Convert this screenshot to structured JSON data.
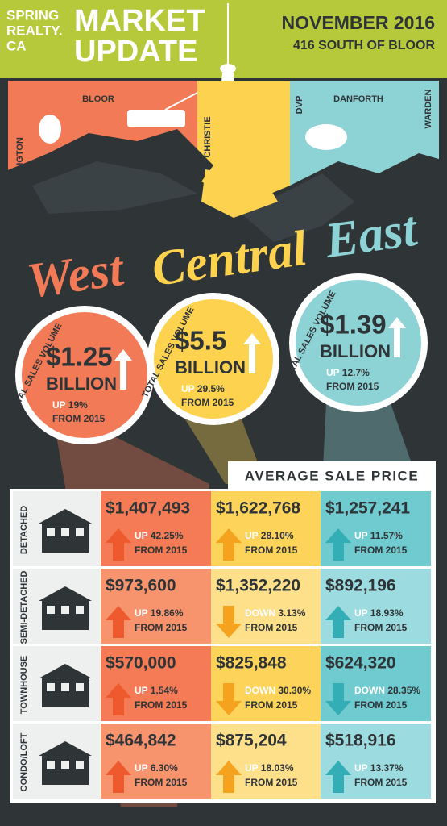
{
  "header": {
    "brand": [
      "SPRING",
      "REALTY.",
      "CA"
    ],
    "title": [
      "MARKET",
      "UPDATE"
    ],
    "date": "NOVEMBER 2016",
    "area": "416 SOUTH OF BLOOR"
  },
  "map": {
    "streets": [
      "BLOOR",
      "ISLINGTON",
      "CHRISTIE",
      "DVP",
      "DANFORTH",
      "WARDEN"
    ],
    "regions": [
      "West",
      "Central",
      "East"
    ]
  },
  "sales_volume": [
    {
      "label": "TOTAL SALES VOLUME",
      "amount": "$1.25",
      "unit": "BILLION",
      "direction": "UP",
      "change": "19%",
      "since": "FROM 2015"
    },
    {
      "label": "TOTAL SALES VOLUME",
      "amount": "$5.5",
      "unit": "BILLION",
      "direction": "UP",
      "change": "29.5%",
      "since": "FROM 2015"
    },
    {
      "label": "TOTAL SALES VOLUME",
      "amount": "$1.39",
      "unit": "BILLION",
      "direction": "UP",
      "change": "12.7%",
      "since": "FROM 2015"
    }
  ],
  "table": {
    "title": "AVERAGE SALE PRICE",
    "rows": [
      {
        "label": "DETACHED",
        "cells": [
          {
            "price": "$1,407,493",
            "direction": "UP",
            "change": "42.25%",
            "since": "FROM 2015"
          },
          {
            "price": "$1,622,768",
            "direction": "UP",
            "change": "28.10%",
            "since": "FROM 2015"
          },
          {
            "price": "$1,257,241",
            "direction": "UP",
            "change": "11.57%",
            "since": "FROM 2015"
          }
        ]
      },
      {
        "label": "SEMI-DETACHED",
        "cells": [
          {
            "price": "$973,600",
            "direction": "UP",
            "change": "19.86%",
            "since": "FROM 2015"
          },
          {
            "price": "$1,352,220",
            "direction": "DOWN",
            "change": "3.13%",
            "since": "FROM 2015"
          },
          {
            "price": "$892,196",
            "direction": "UP",
            "change": "18.93%",
            "since": "FROM 2015"
          }
        ]
      },
      {
        "label": "TOWNHOUSE",
        "cells": [
          {
            "price": "$570,000",
            "direction": "UP",
            "change": "1.54%",
            "since": "FROM 2015"
          },
          {
            "price": "$825,848",
            "direction": "DOWN",
            "change": "30.30%",
            "since": "FROM 2015"
          },
          {
            "price": "$624,320",
            "direction": "DOWN",
            "change": "28.35%",
            "since": "FROM 2015"
          }
        ]
      },
      {
        "label": "CONDO/LOFT",
        "cells": [
          {
            "price": "$464,842",
            "direction": "UP",
            "change": "6.30%",
            "since": "FROM 2015"
          },
          {
            "price": "$875,204",
            "direction": "UP",
            "change": "18.03%",
            "since": "FROM 2015"
          },
          {
            "price": "$518,916",
            "direction": "UP",
            "change": "13.37%",
            "since": "FROM 2015"
          }
        ]
      }
    ]
  }
}
